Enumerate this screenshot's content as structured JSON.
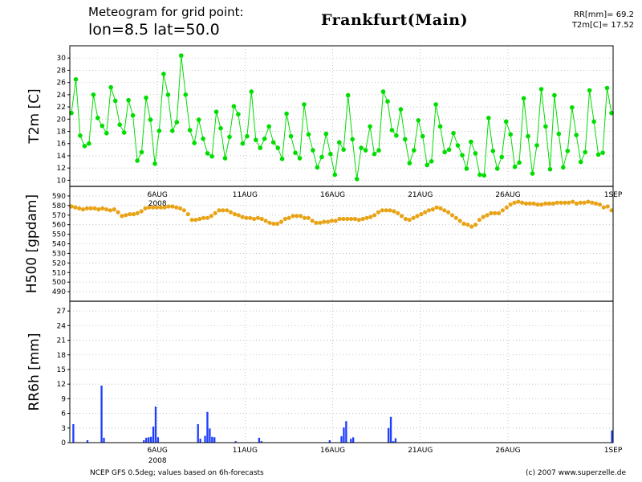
{
  "header": {
    "line1": "Meteogram for grid point:",
    "line2": "lon=8.5 lat=50.0",
    "city": "Frankfurt(Main)",
    "rr_total": "RR[mm]= 69.2",
    "t2m_mean": "T2m[C]= 17.52"
  },
  "footer": {
    "source": "NCEP GFS 0.5deg; values based on 6h-forecasts",
    "copyright": "(c) 2007 www.superzelle.de"
  },
  "colors": {
    "t2m": "#00dd00",
    "h500": "#e8a317",
    "rr6h": "#1f3fff"
  },
  "chart_data": [
    {
      "type": "line",
      "name": "t2m",
      "ylabel": "T2m [C]",
      "ylim": [
        9,
        32
      ],
      "yticks": [
        10,
        12,
        14,
        16,
        18,
        20,
        22,
        24,
        26,
        28,
        30
      ],
      "x_start": "2008-08-01 00:00",
      "x_step_hours": 6,
      "date_ticks": [
        "6AUG",
        "11AUG",
        "16AUG",
        "21AUG",
        "26AUG",
        "1SEP"
      ],
      "year_label": "2008",
      "grid": true,
      "values": [
        21,
        26.5,
        17.3,
        15.6,
        16,
        24,
        20.2,
        18.9,
        17.7,
        25.2,
        23,
        19.1,
        17.8,
        23.1,
        20.6,
        13.2,
        14.6,
        23.5,
        19.9,
        12.7,
        18.1,
        27.4,
        24,
        18.1,
        19.5,
        30.4,
        24,
        18.2,
        16.1,
        19.9,
        16.8,
        14.4,
        13.9,
        21.2,
        18.5,
        13.6,
        17.1,
        22.1,
        20.8,
        16,
        17.2,
        24.5,
        16.6,
        15.3,
        16.8,
        18.8,
        16.2,
        15.3,
        13.5,
        20.9,
        17.2,
        14.5,
        13.6,
        22.4,
        17.5,
        14.9,
        12.1,
        13.8,
        17.6,
        14.3,
        10.9,
        16.2,
        15,
        23.9,
        16.7,
        10.2,
        15.3,
        14.9,
        18.8,
        14.3,
        14.9,
        24.5,
        22.9,
        18.2,
        17.3,
        21.6,
        16.7,
        12.8,
        14.9,
        19.8,
        17.2,
        12.5,
        13.1,
        22.4,
        18.8,
        14.6,
        15,
        17.7,
        15.7,
        14.1,
        11.9,
        16.3,
        14.4,
        10.9,
        10.8,
        20.2,
        14.8,
        11.9,
        13.8,
        19.6,
        17.5,
        12.2,
        12.9,
        23.4,
        17.2,
        11.1,
        15.7,
        24.9,
        18.8,
        11.8,
        23.9,
        17.6,
        12.1,
        14.8,
        21.9,
        17.4,
        13,
        14.6,
        24.7,
        19.6,
        14.2,
        14.5,
        25.1,
        21
      ]
    },
    {
      "type": "line",
      "name": "h500",
      "ylabel": "H500 [gpdam]",
      "ylim": [
        480,
        600
      ],
      "yticks": [
        490,
        500,
        510,
        520,
        530,
        540,
        550,
        560,
        570,
        580,
        590
      ],
      "date_ticks": [
        "6AUG",
        "11AUG",
        "16AUG",
        "21AUG",
        "26AUG",
        "1SEP"
      ],
      "year_label": "2008",
      "grid": true,
      "values": [
        579,
        578,
        577,
        576,
        577,
        577,
        577,
        576,
        577,
        576,
        575,
        576,
        573,
        569,
        570,
        571,
        571,
        572,
        574,
        577,
        578,
        578,
        578,
        578,
        578,
        579,
        579,
        578,
        577,
        575,
        571,
        565,
        565,
        566,
        567,
        567,
        569,
        572,
        575,
        575,
        575,
        573,
        571,
        570,
        568,
        567,
        567,
        566,
        567,
        566,
        564,
        562,
        561,
        561,
        563,
        566,
        567,
        569,
        569,
        569,
        567,
        567,
        564,
        562,
        562,
        563,
        563,
        564,
        564,
        566,
        566,
        566,
        566,
        566,
        565,
        566,
        567,
        568,
        570,
        573,
        575,
        575,
        575,
        574,
        572,
        569,
        566,
        565,
        567,
        569,
        571,
        573,
        575,
        576,
        578,
        577,
        575,
        573,
        570,
        567,
        564,
        561,
        560,
        558,
        560,
        565,
        568,
        570,
        572,
        572,
        572,
        575,
        578,
        581,
        583,
        584,
        583,
        582,
        582,
        582,
        581,
        581,
        582,
        582,
        582,
        583,
        583,
        583,
        583,
        584,
        582,
        583,
        583,
        584,
        583,
        582,
        581,
        578,
        579,
        575
      ]
    },
    {
      "type": "bar",
      "name": "rr6h",
      "ylabel": "RR6h [mm]",
      "ylim": [
        0,
        29
      ],
      "yticks": [
        0,
        3,
        6,
        9,
        12,
        15,
        18,
        21,
        24,
        27
      ],
      "date_ticks": [
        "6AUG",
        "11AUG",
        "16AUG",
        "21AUG",
        "26AUG",
        "1SEP"
      ],
      "year_label": "2008",
      "grid": true,
      "values": [
        0,
        3.8,
        0,
        0,
        0,
        0,
        0,
        0.5,
        0,
        0,
        0,
        0,
        0,
        11.7,
        1,
        0,
        0,
        0,
        0,
        0,
        0,
        0,
        0,
        0,
        0,
        0,
        0,
        0,
        0,
        0,
        0,
        0.5,
        1,
        1.1,
        1.2,
        3.3,
        7.4,
        1.1,
        0,
        0,
        0,
        0,
        0,
        0,
        0,
        0,
        0,
        0,
        0,
        0,
        0,
        0,
        0,
        0,
        3.8,
        0.8,
        0,
        1.4,
        6.3,
        2.9,
        1.2,
        1.1,
        0,
        0,
        0,
        0,
        0,
        0,
        0,
        0,
        0.3,
        0,
        0,
        0,
        0,
        0,
        0,
        0,
        0,
        0,
        1,
        0.3,
        0,
        0,
        0,
        0,
        0,
        0,
        0,
        0,
        0,
        0,
        0,
        0,
        0,
        0,
        0,
        0,
        0,
        0,
        0,
        0,
        0,
        0,
        0,
        0,
        0,
        0,
        0,
        0,
        0.5,
        0,
        0,
        0,
        0,
        1.3,
        3.1,
        4.4,
        0,
        0.8,
        1.1,
        0,
        0,
        0,
        0,
        0,
        0,
        0,
        0,
        0,
        0,
        0,
        0,
        0,
        0,
        3,
        5.3,
        0.3,
        0.9,
        0,
        0,
        0,
        0,
        0,
        0,
        0,
        0,
        0,
        0,
        0,
        0,
        0,
        0,
        0,
        0,
        0,
        0,
        0,
        0,
        0,
        0,
        0,
        0,
        0,
        0,
        0,
        0,
        0,
        0,
        0,
        0,
        0,
        0,
        0,
        0,
        0,
        0,
        0,
        0,
        0,
        0,
        0,
        0,
        0,
        0,
        0,
        0,
        0,
        0,
        0,
        0,
        0,
        0,
        0,
        0,
        0,
        0,
        0,
        0,
        0,
        0,
        0,
        0,
        0,
        0,
        0,
        0,
        0,
        0,
        0,
        0,
        0,
        0,
        0,
        0,
        0,
        0,
        0,
        0,
        0,
        0,
        0,
        0,
        0,
        0,
        0,
        0,
        0,
        0,
        0,
        2.5
      ]
    }
  ]
}
